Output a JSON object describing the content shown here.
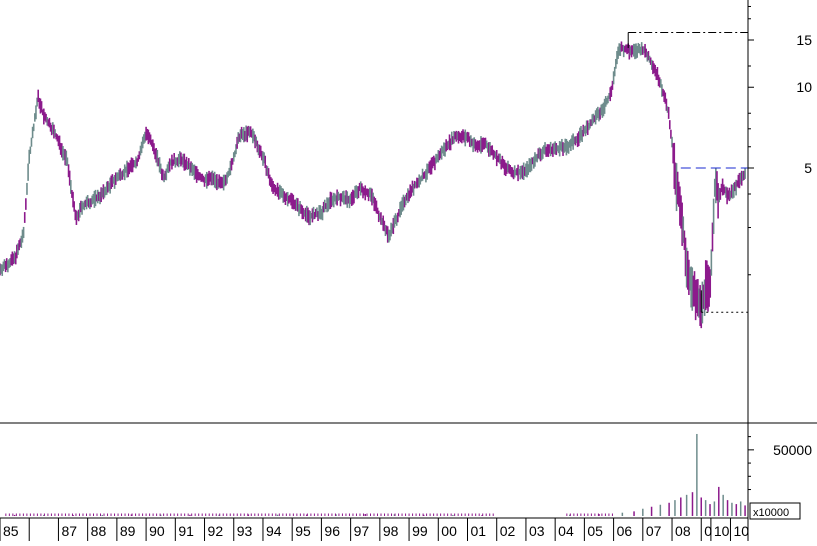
{
  "chart_data": [
    {
      "type": "candlestick",
      "scale": "log",
      "y_ticks": [
        "15",
        "10",
        "5"
      ],
      "y_tick_values": [
        15,
        10,
        5
      ],
      "ylim": [
        1.3,
        20
      ],
      "xlim": [
        1985.0,
        2010.6
      ],
      "x_tick_labels": [
        "85",
        "87",
        "88",
        "89",
        "90",
        "91",
        "92",
        "93",
        "94",
        "95",
        "96",
        "97",
        "98",
        "99",
        "00",
        "01",
        "02",
        "03",
        "04",
        "05",
        "06",
        "07",
        "08",
        "0",
        "10",
        "10"
      ],
      "x_tick_years": [
        1985,
        1987,
        1988,
        1989,
        1990,
        1991,
        1992,
        1993,
        1994,
        1995,
        1996,
        1997,
        1998,
        1999,
        2000,
        2001,
        2002,
        2003,
        2004,
        2005,
        2006,
        2007,
        2008,
        2009,
        2009.33,
        2010
      ],
      "up_color": "#6e8c8c",
      "down_color": "#8c1a8c",
      "series": [
        {
          "x": [
            1985.0,
            1985.5,
            1985.8,
            1986.0,
            1986.3,
            1986.5,
            1986.8,
            1987.0,
            1987.3,
            1987.6,
            1987.8,
            1988.0,
            1988.5,
            1988.9,
            1989.3,
            1989.7,
            1990.0,
            1990.3,
            1990.6,
            1990.8,
            1991.2,
            1991.6,
            1992.0,
            1992.3,
            1992.6,
            1992.9,
            1993.2,
            1993.6,
            1994.0,
            1994.3,
            1994.6,
            1995.0,
            1995.3,
            1995.6,
            1996.0,
            1996.3,
            1996.6,
            1997.0,
            1997.3,
            1997.7,
            1998.0,
            1998.3,
            1998.6,
            1998.9,
            1999.2,
            1999.6,
            2000.0,
            2000.3,
            2000.6,
            2001.0,
            2001.3,
            2001.6,
            2002.0,
            2002.3,
            2002.6,
            2003.0,
            2003.3,
            2003.6,
            2004.0,
            2004.4,
            2004.8,
            2005.2,
            2005.6,
            2005.9,
            2006.2,
            2006.4,
            2006.7,
            2007.0,
            2007.3,
            2007.6,
            2007.9,
            2008.1,
            2008.3,
            2008.5,
            2008.7,
            2008.9,
            2009.0,
            2009.15,
            2009.3,
            2009.45,
            2009.6,
            2009.75,
            2009.9,
            2010.1,
            2010.3,
            2010.5
          ],
          "y": [
            2.1,
            2.3,
            2.8,
            5.5,
            9.2,
            7.8,
            7.0,
            6.3,
            5.3,
            3.2,
            3.6,
            3.7,
            4.0,
            4.5,
            4.9,
            5.3,
            6.8,
            5.8,
            4.6,
            5.2,
            5.4,
            4.9,
            4.5,
            4.6,
            4.3,
            5.0,
            6.6,
            6.8,
            5.5,
            4.3,
            4.0,
            3.8,
            3.5,
            3.3,
            3.4,
            3.8,
            3.9,
            3.8,
            4.2,
            4.0,
            3.3,
            2.8,
            3.3,
            3.9,
            4.3,
            4.8,
            5.5,
            6.1,
            6.6,
            6.5,
            6.0,
            6.2,
            5.5,
            5.0,
            4.8,
            4.9,
            5.4,
            5.8,
            5.9,
            6.0,
            6.5,
            7.3,
            8.2,
            9.5,
            14.2,
            13.8,
            13.6,
            13.9,
            12.4,
            10.5,
            7.8,
            4.8,
            3.4,
            2.3,
            1.75,
            1.6,
            1.5,
            1.9,
            1.75,
            4.2,
            4.0,
            4.3,
            3.9,
            4.1,
            4.5,
            4.8
          ]
        }
      ],
      "annotations": [
        {
          "type": "hline",
          "style": "dash-dot",
          "value": 16,
          "x_from": 2006.5,
          "x_to": 2010.6
        },
        {
          "type": "hline",
          "style": "dashed",
          "value": 5,
          "x_from": 2008.3,
          "x_to": 2010.6
        },
        {
          "type": "hline",
          "style": "dotted",
          "value": 1.45,
          "x_from": 2009.0,
          "x_to": 2010.6
        }
      ]
    },
    {
      "type": "bar",
      "name": "volume",
      "unit_label": "x10000",
      "y_ticks": [
        "50000"
      ],
      "y_tick_values": [
        50000
      ],
      "ylim": [
        0,
        65000
      ],
      "xlim": [
        1985.0,
        2010.6
      ],
      "x": [
        1985.5,
        1986.5,
        1987.5,
        1988.5,
        1989.5,
        1990.5,
        1991.5,
        1992.5,
        1993.5,
        1994.5,
        1995.5,
        1996.5,
        1997.5,
        1998.5,
        1999.5,
        2000.5,
        2001.5,
        2004.5,
        2005.5,
        2006.3,
        2006.7,
        2007.0,
        2007.3,
        2007.6,
        2007.9,
        2008.1,
        2008.3,
        2008.5,
        2008.7,
        2008.85,
        2009.0,
        2009.15,
        2009.3,
        2009.45,
        2009.6,
        2009.75,
        2009.9,
        2010.05,
        2010.2,
        2010.35,
        2010.5
      ],
      "values": [
        800,
        800,
        800,
        800,
        1200,
        1000,
        900,
        1000,
        1200,
        1000,
        1100,
        1300,
        1500,
        1300,
        900,
        800,
        700,
        1000,
        1500,
        2500,
        3500,
        5500,
        7000,
        8500,
        10000,
        12000,
        14000,
        16000,
        18000,
        62000,
        14000,
        12000,
        9000,
        11000,
        22000,
        16000,
        12000,
        10000,
        9000,
        11000,
        8000
      ]
    }
  ]
}
